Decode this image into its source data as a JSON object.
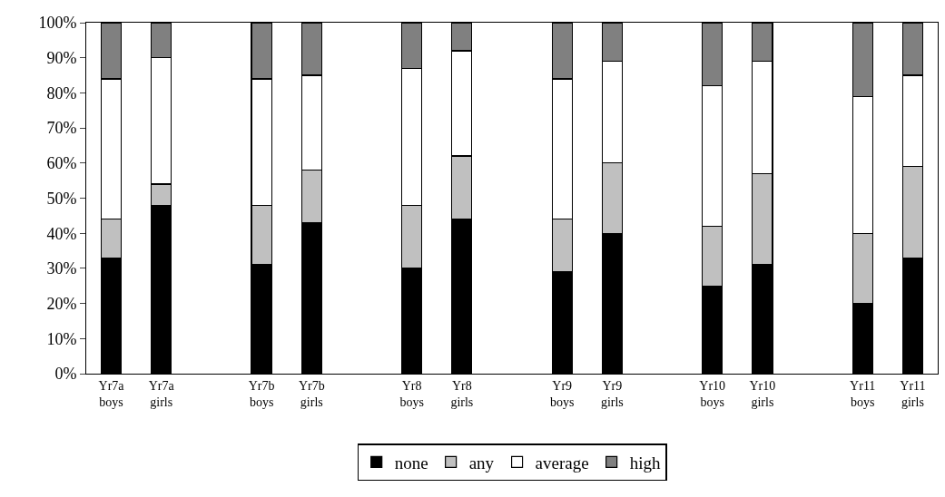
{
  "chart_data": {
    "type": "bar",
    "stacked": true,
    "categories": [
      "Yr7a\nboys",
      "Yr7a\ngirls",
      null,
      "Yr7b\nboys",
      "Yr7b\ngirls",
      null,
      "Yr8\nboys",
      "Yr8\ngirls",
      null,
      "Yr9\nboys",
      "Yr9\ngirls",
      null,
      "Yr10\nboys",
      "Yr10\ngirls",
      null,
      "Yr11\nboys",
      "Yr11\ngirls"
    ],
    "series": [
      {
        "name": "none",
        "color": "#000000",
        "values": [
          33,
          48,
          null,
          31,
          43,
          null,
          30,
          44,
          null,
          29,
          40,
          null,
          25,
          31,
          null,
          20,
          33
        ]
      },
      {
        "name": "any",
        "color": "#c0c0c0",
        "values": [
          11,
          6,
          null,
          17,
          15,
          null,
          18,
          18,
          null,
          15,
          20,
          null,
          17,
          26,
          null,
          20,
          26
        ]
      },
      {
        "name": "average",
        "color": "#ffffff",
        "values": [
          40,
          36,
          null,
          36,
          27,
          null,
          39,
          30,
          null,
          40,
          29,
          null,
          40,
          32,
          null,
          39,
          26
        ]
      },
      {
        "name": "high",
        "color": "#808080",
        "values": [
          16,
          10,
          null,
          16,
          15,
          null,
          13,
          8,
          null,
          16,
          11,
          null,
          18,
          11,
          null,
          21,
          15
        ]
      }
    ],
    "ylim": [
      0,
      100
    ],
    "yticks": [
      {
        "value": 0,
        "label": "0%"
      },
      {
        "value": 10,
        "label": "10%"
      },
      {
        "value": 20,
        "label": "20%"
      },
      {
        "value": 30,
        "label": "30%"
      },
      {
        "value": 40,
        "label": "40%"
      },
      {
        "value": 50,
        "label": "50%"
      },
      {
        "value": 60,
        "label": "60%"
      },
      {
        "value": 70,
        "label": "70%"
      },
      {
        "value": 80,
        "label": "80%"
      },
      {
        "value": 90,
        "label": "90%"
      },
      {
        "value": 100,
        "label": "100%"
      }
    ],
    "grid": false,
    "legend": "bottom"
  }
}
